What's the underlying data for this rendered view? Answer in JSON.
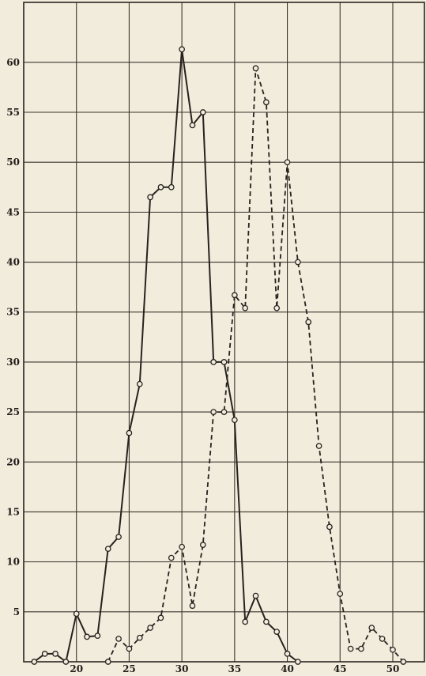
{
  "chart_data": {
    "type": "line",
    "xlim": [
      15,
      53
    ],
    "ylim": [
      0,
      66
    ],
    "x_ticks": [
      20,
      25,
      30,
      35,
      40,
      45,
      50
    ],
    "y_ticks": [
      5,
      10,
      15,
      20,
      25,
      30,
      35,
      40,
      45,
      50,
      55,
      60
    ],
    "x_grid": [
      15,
      20,
      25,
      30,
      35,
      40,
      45,
      50
    ],
    "y_grid": [
      0,
      5,
      10,
      15,
      20,
      25,
      30,
      35,
      40,
      45,
      50,
      55,
      60
    ],
    "grid": true,
    "series": [
      {
        "style": "solid",
        "points": [
          [
            16,
            0
          ],
          [
            17,
            0.8
          ],
          [
            18,
            0.8
          ],
          [
            19,
            0
          ],
          [
            20,
            4.8
          ],
          [
            21,
            2.5
          ],
          [
            22,
            2.6
          ],
          [
            23,
            11.3
          ],
          [
            24,
            12.5
          ],
          [
            25,
            22.9
          ],
          [
            26,
            27.8
          ],
          [
            27,
            46.5
          ],
          [
            28,
            47.5
          ],
          [
            29,
            47.5
          ],
          [
            30,
            61.3
          ],
          [
            31,
            53.7
          ],
          [
            32,
            55
          ],
          [
            33,
            30
          ],
          [
            34,
            30
          ],
          [
            35,
            24.2
          ],
          [
            36,
            4
          ],
          [
            37,
            6.6
          ],
          [
            38,
            4
          ],
          [
            39,
            3
          ],
          [
            40,
            0.8
          ],
          [
            41,
            0
          ]
        ]
      },
      {
        "style": "dashed",
        "points": [
          [
            23,
            0
          ],
          [
            24,
            2.3
          ],
          [
            25,
            1.3
          ],
          [
            26,
            2.4
          ],
          [
            27,
            3.4
          ],
          [
            28,
            4.4
          ],
          [
            29,
            10.4
          ],
          [
            30,
            11.5
          ],
          [
            31,
            5.6
          ],
          [
            32,
            11.7
          ],
          [
            33,
            25
          ],
          [
            34,
            25
          ],
          [
            35,
            36.7
          ],
          [
            36,
            35.4
          ],
          [
            37,
            59.4
          ],
          [
            38,
            56
          ],
          [
            39,
            35.4
          ],
          [
            40,
            50
          ],
          [
            41,
            40
          ],
          [
            42,
            34
          ],
          [
            43,
            21.6
          ],
          [
            44,
            13.5
          ],
          [
            45,
            6.8
          ],
          [
            46,
            1.3
          ],
          [
            47,
            1.3
          ],
          [
            48,
            3.4
          ],
          [
            49,
            2.3
          ],
          [
            50,
            1.2
          ],
          [
            51,
            0
          ]
        ]
      }
    ]
  }
}
